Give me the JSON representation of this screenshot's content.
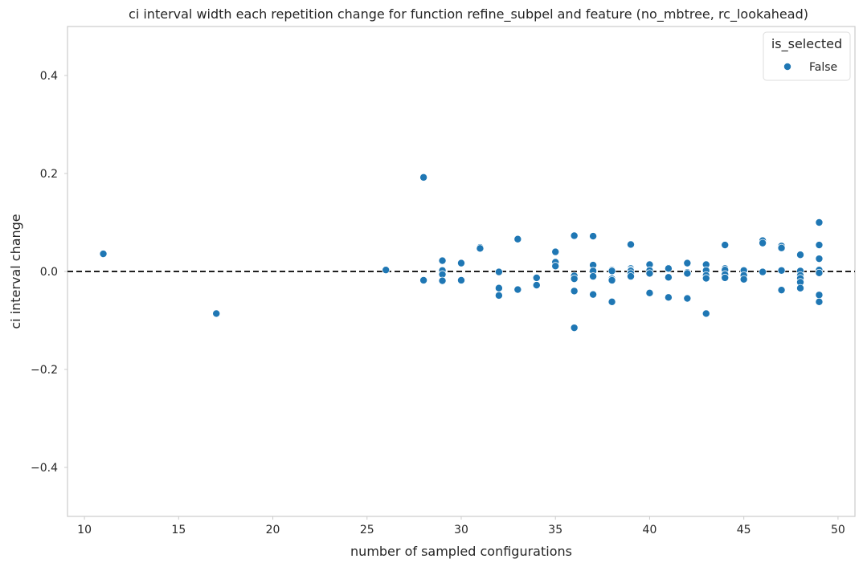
{
  "chart_data": {
    "type": "scatter",
    "title": "ci interval width each repetition change for function refine_subpel and feature (no_mbtree, rc_lookahead)",
    "xlabel": "number of sampled configurations",
    "ylabel": "ci interval change",
    "xlim": [
      9.1,
      50.9
    ],
    "ylim": [
      -0.5,
      0.5
    ],
    "xticks": [
      10,
      15,
      20,
      25,
      30,
      35,
      40,
      45,
      50
    ],
    "yticks": [
      -0.4,
      -0.2,
      0.0,
      0.2,
      0.4
    ],
    "ytick_labels": [
      "−0.4",
      "−0.2",
      "0.0",
      "0.2",
      "0.4"
    ],
    "grid": false,
    "reference_line": {
      "y": 0,
      "style": "dashed",
      "color": "#000000"
    },
    "legend": {
      "title": "is_selected",
      "position": "top-right",
      "entries": [
        "False"
      ]
    },
    "series": [
      {
        "name": "False",
        "color": "#1f77b4",
        "points": [
          [
            11,
            0.036
          ],
          [
            17,
            -0.086
          ],
          [
            26,
            0.003
          ],
          [
            28,
            0.192
          ],
          [
            28,
            -0.018
          ],
          [
            29,
            0.022
          ],
          [
            29,
            0.002
          ],
          [
            29,
            -0.006
          ],
          [
            29,
            -0.019
          ],
          [
            30,
            0.017
          ],
          [
            30,
            -0.018
          ],
          [
            31,
            0.049
          ],
          [
            31,
            0.047
          ],
          [
            32,
            -0.001
          ],
          [
            32,
            -0.034
          ],
          [
            32,
            -0.049
          ],
          [
            33,
            0.066
          ],
          [
            33,
            -0.037
          ],
          [
            34,
            -0.013
          ],
          [
            34,
            -0.028
          ],
          [
            35,
            0.04
          ],
          [
            35,
            0.019
          ],
          [
            35,
            0.011
          ],
          [
            36,
            0.073
          ],
          [
            36,
            -0.009
          ],
          [
            36,
            -0.015
          ],
          [
            36,
            -0.04
          ],
          [
            36,
            -0.115
          ],
          [
            37,
            0.072
          ],
          [
            37,
            0.013
          ],
          [
            37,
            0.001
          ],
          [
            37,
            -0.01
          ],
          [
            37,
            -0.047
          ],
          [
            38,
            0.003
          ],
          [
            38,
            0.001
          ],
          [
            38,
            -0.015
          ],
          [
            38,
            -0.018
          ],
          [
            38,
            -0.062
          ],
          [
            39,
            0.055
          ],
          [
            39,
            0.006
          ],
          [
            39,
            0.003
          ],
          [
            39,
            0.001
          ],
          [
            39,
            -0.004
          ],
          [
            39,
            -0.01
          ],
          [
            40,
            0.014
          ],
          [
            40,
            0.002
          ],
          [
            40,
            -0.004
          ],
          [
            40,
            -0.044
          ],
          [
            41,
            0.007
          ],
          [
            41,
            0.006
          ],
          [
            41,
            -0.012
          ],
          [
            41,
            -0.053
          ],
          [
            42,
            0.017
          ],
          [
            42,
            -0.002
          ],
          [
            42,
            -0.004
          ],
          [
            42,
            -0.055
          ],
          [
            43,
            0.014
          ],
          [
            43,
            0.002
          ],
          [
            43,
            -0.008
          ],
          [
            43,
            -0.014
          ],
          [
            43,
            -0.086
          ],
          [
            44,
            0.054
          ],
          [
            44,
            0.006
          ],
          [
            44,
            0.003
          ],
          [
            44,
            -0.006
          ],
          [
            44,
            -0.013
          ],
          [
            45,
            0.002
          ],
          [
            45,
            -0.008
          ],
          [
            45,
            -0.016
          ],
          [
            46,
            0.063
          ],
          [
            46,
            0.058
          ],
          [
            46,
            -0.001
          ],
          [
            47,
            0.052
          ],
          [
            47,
            0.048
          ],
          [
            47,
            0.002
          ],
          [
            47,
            -0.038
          ],
          [
            48,
            0.034
          ],
          [
            48,
            0.001
          ],
          [
            48,
            -0.008
          ],
          [
            48,
            -0.014
          ],
          [
            48,
            -0.022
          ],
          [
            48,
            -0.034
          ],
          [
            49,
            0.1
          ],
          [
            49,
            0.054
          ],
          [
            49,
            0.026
          ],
          [
            49,
            0.003
          ],
          [
            49,
            -0.003
          ],
          [
            49,
            -0.048
          ],
          [
            49,
            -0.062
          ]
        ]
      }
    ]
  }
}
